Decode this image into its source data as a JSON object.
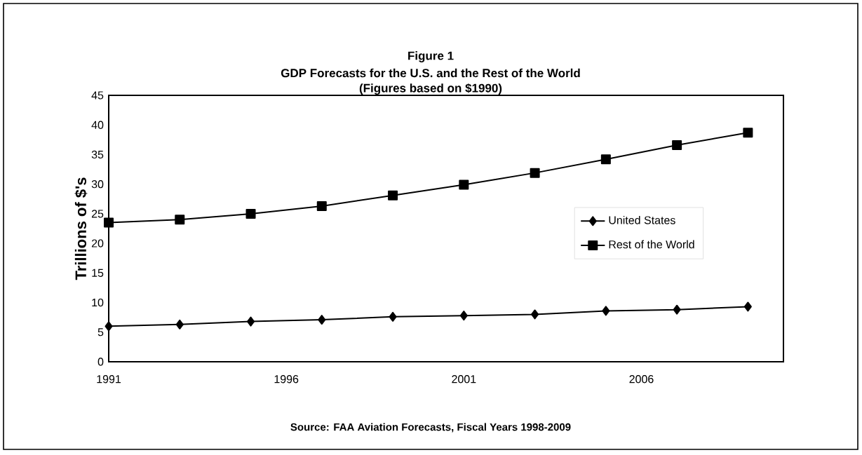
{
  "chart_data": {
    "type": "line",
    "title": "Figure 1",
    "subtitle": "GDP Forecasts for the U.S. and the Rest of the World",
    "annotations": [
      "(Figures based on $1990)",
      "Source: FAA Aviation Forecasts, Fiscal Years 1998-2009"
    ],
    "ylabel": "Trillions of $'s",
    "x": [
      1991,
      1993,
      1995,
      1997,
      1999,
      2001,
      2003,
      2005,
      2007,
      2009
    ],
    "series": [
      {
        "name": "United States",
        "color": "#000000",
        "marker": "diamond",
        "values": [
          6.0,
          6.3,
          6.8,
          7.1,
          7.6,
          7.8,
          8.0,
          8.6,
          8.8,
          9.3
        ]
      },
      {
        "name": "Rest of the World",
        "color": "#000000",
        "marker": "square",
        "values": [
          23.5,
          24.0,
          25.0,
          26.3,
          28.1,
          29.9,
          31.9,
          34.2,
          36.6,
          38.7
        ]
      }
    ],
    "xlim": [
      1991,
      2010
    ],
    "xticks": [
      1991,
      1996,
      2001,
      2006
    ],
    "ylim": [
      0,
      45
    ],
    "yticks": [
      0,
      5,
      10,
      15,
      20,
      25,
      30,
      35,
      40,
      45
    ],
    "legend": "right",
    "grid": false,
    "line_style": "solid"
  }
}
